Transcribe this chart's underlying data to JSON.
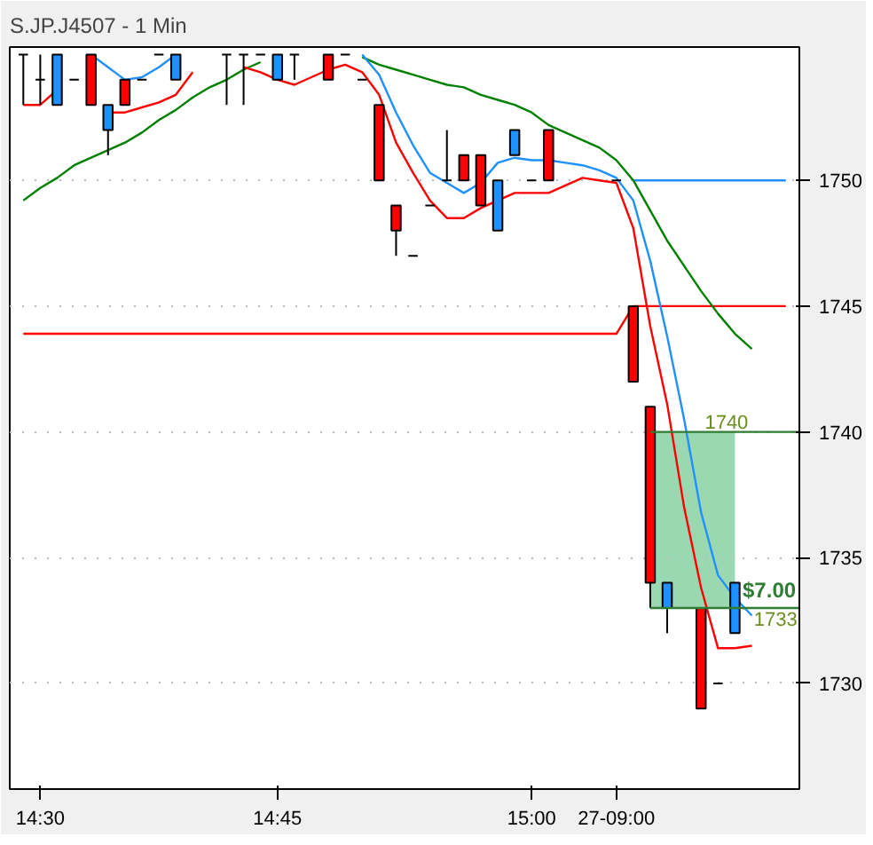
{
  "chart_data": {
    "type": "candlestick",
    "title": "S.JP.J4507 - 1 Min",
    "categories": [
      null,
      "14:30",
      null,
      null,
      null,
      null,
      null,
      null,
      null,
      null,
      null,
      null,
      null,
      null,
      null,
      "14:45",
      null,
      null,
      null,
      null,
      null,
      null,
      null,
      null,
      null,
      null,
      null,
      null,
      null,
      null,
      "15:00",
      null,
      null,
      null,
      null,
      "27-09:00",
      null,
      null,
      null,
      null,
      null,
      null,
      null,
      null,
      null,
      null
    ],
    "ohlc": [
      [
        1755,
        1755,
        1753,
        1755
      ],
      [
        1754,
        1755,
        1753,
        1754
      ],
      [
        1753,
        1755,
        1753,
        1755
      ],
      [
        1754,
        1754,
        1754,
        1754
      ],
      [
        1755,
        1755,
        1753,
        1753
      ],
      [
        1752,
        1753,
        1751,
        1753
      ],
      [
        1754,
        1754,
        1753,
        1753
      ],
      [
        1754,
        1754,
        1754,
        1754
      ],
      [
        1755,
        1755,
        1755,
        1755
      ],
      [
        1754,
        1755,
        1754,
        1755
      ],
      null,
      null,
      [
        1755,
        1755,
        1753,
        1755
      ],
      [
        1755,
        1755,
        1753,
        1755
      ],
      [
        1755,
        1755,
        1755,
        1755
      ],
      [
        1754,
        1755,
        1754,
        1755
      ],
      [
        1755,
        1755,
        1754,
        1755
      ],
      null,
      [
        1755,
        1755,
        1754,
        1754
      ],
      [
        1755,
        1755,
        1755,
        1755
      ],
      [
        1754,
        1754,
        1754,
        1754
      ],
      [
        1753,
        1753,
        1750,
        1750
      ],
      [
        1749,
        1749,
        1747,
        1748
      ],
      [
        1747,
        1747,
        1747,
        1747
      ],
      [
        1749,
        1749,
        1749,
        1749
      ],
      [
        1750,
        1752,
        1750,
        1750
      ],
      [
        1751,
        1751,
        1750,
        1750
      ],
      [
        1751,
        1751,
        1749,
        1749
      ],
      [
        1748,
        1750,
        1748,
        1750
      ],
      [
        1751,
        1752,
        1751,
        1752
      ],
      [
        1750,
        1750,
        1750,
        1750
      ],
      [
        1752,
        1752,
        1750,
        1750
      ],
      null,
      null,
      null,
      [
        1750,
        1750,
        1750,
        1750
      ],
      [
        1745,
        1745,
        1742,
        1742
      ],
      [
        1741,
        1741,
        1733,
        1734
      ],
      [
        1733,
        1734,
        1732,
        1734
      ],
      null,
      [
        1733,
        1733,
        1729,
        1729
      ],
      [
        1730,
        1730,
        1730,
        1730
      ],
      [
        1732,
        1734,
        1732,
        1734
      ],
      null,
      null,
      null
    ],
    "colors": [
      "#000000",
      "#000000",
      "#1e90ff",
      "#000000",
      "#ff0000",
      "#1e90ff",
      "#ff0000",
      "#000000",
      "#000000",
      "#1e90ff",
      null,
      null,
      "#000000",
      "#000000",
      "#000000",
      "#1e90ff",
      "#000000",
      null,
      "#ff0000",
      "#000000",
      "#000000",
      "#ff0000",
      "#ff0000",
      "#000000",
      "#000000",
      "#000000",
      "#ff0000",
      "#ff0000",
      "#1e90ff",
      "#1e90ff",
      "#000000",
      "#ff0000",
      null,
      null,
      null,
      "#000000",
      "#ff0000",
      "#ff0000",
      "#1e90ff",
      null,
      "#ff0000",
      "#000000",
      "#1e90ff",
      null,
      null,
      null
    ],
    "series": [
      {
        "type": "line",
        "color": "#ff0000",
        "values": [
          1743.9,
          1743.9,
          1743.9,
          1743.9,
          1743.9,
          1743.9,
          1743.9,
          1743.9,
          1743.9,
          1743.9,
          1743.9,
          1743.9,
          1743.9,
          1743.9,
          1743.9,
          1743.9,
          1743.9,
          1743.9,
          1743.9,
          1743.9,
          1743.9,
          1743.9,
          1743.9,
          1743.9,
          1743.9,
          1743.9,
          1743.9,
          1743.9,
          1743.9,
          1743.9,
          1743.9,
          1743.9,
          1743.9,
          1743.9,
          1743.9,
          1743.9,
          1745,
          1745,
          1745,
          1745,
          1745,
          1745,
          1745,
          1745,
          1745,
          1745
        ]
      },
      {
        "type": "line",
        "color": "#1e90ff",
        "values": [
          null,
          null,
          null,
          null,
          null,
          null,
          null,
          null,
          null,
          null,
          null,
          null,
          null,
          null,
          null,
          null,
          null,
          null,
          null,
          null,
          null,
          null,
          null,
          null,
          null,
          null,
          null,
          null,
          null,
          null,
          null,
          null,
          null,
          null,
          null,
          null,
          1750,
          1750,
          1750,
          1750,
          1750,
          1750,
          1750,
          1750,
          1750,
          1750
        ]
      },
      {
        "type": "line",
        "color": "#008000",
        "values": [
          1749.2,
          1749.7,
          1750.1,
          1750.6,
          1750.9,
          1751.2,
          1751.5,
          1751.9,
          1752.4,
          1752.8,
          1753.3,
          1753.7,
          1754,
          1754.4,
          1754.7,
          null,
          null,
          null,
          null,
          null,
          1754.9,
          1754.6,
          1754.4,
          1754.2,
          1754,
          1753.8,
          1753.7,
          1753.4,
          1753.2,
          1753,
          1752.7,
          1752.2,
          1751.9,
          1751.6,
          1751.3,
          1750.8,
          1750,
          1748.8,
          1747.6,
          1746.6,
          1745.6,
          1744.7,
          1743.9,
          1743.3,
          null,
          null
        ]
      },
      {
        "type": "line",
        "color": "#1e90ff",
        "values": [
          null,
          null,
          null,
          null,
          1755,
          1754.5,
          1754,
          1754.1,
          1754.5,
          1755,
          null,
          null,
          null,
          null,
          null,
          null,
          null,
          null,
          null,
          null,
          1755,
          1754.2,
          1752.7,
          1751.4,
          1750.3,
          1749.9,
          1749.5,
          1749.9,
          1750.7,
          1750.9,
          1750.8,
          1750.8,
          1750.7,
          1750.6,
          1750.4,
          1750.1,
          1749.2,
          1746.8,
          1743.8,
          1740.5,
          1736.8,
          1734.3,
          1733.4,
          1732.7,
          null,
          null
        ]
      },
      {
        "type": "line",
        "color": "#ff0000",
        "values": [
          1753,
          1753,
          1753.6,
          null,
          null,
          1752.7,
          1752.7,
          1752.9,
          1753.1,
          1753.4,
          1754.3,
          null,
          null,
          1754.5,
          1754.3,
          1754,
          1753.8,
          1754.1,
          1754.4,
          1754.6,
          1754.3,
          1753.4,
          1751.5,
          1750.3,
          1749.2,
          1748.5,
          1748.5,
          1748.9,
          1749.2,
          1749.5,
          1749.5,
          1749.5,
          1749.8,
          1750.1,
          1750,
          1749.9,
          1748.1,
          1744.2,
          1741.1,
          1737,
          1733.8,
          1731.4,
          1731.4,
          1731.5,
          null,
          null
        ]
      }
    ],
    "annotations": [
      {
        "text": "1740",
        "y": 1740
      },
      {
        "text": "1733",
        "y": 1733
      },
      "$7.00"
    ],
    "bands": [
      {
        "axis": "y",
        "from": 1733,
        "to": 1740,
        "color": "#8fd4a8"
      }
    ],
    "ref_lines": [
      {
        "axis": "y",
        "value": 1740,
        "color": "#2e7d32"
      },
      {
        "axis": "y",
        "value": 1733,
        "color": "#2e7d32"
      }
    ],
    "ylim": [
      1725.8,
      1755.3
    ],
    "yticks": [
      1730,
      1735,
      1740,
      1745,
      1750
    ],
    "grid": "y"
  }
}
